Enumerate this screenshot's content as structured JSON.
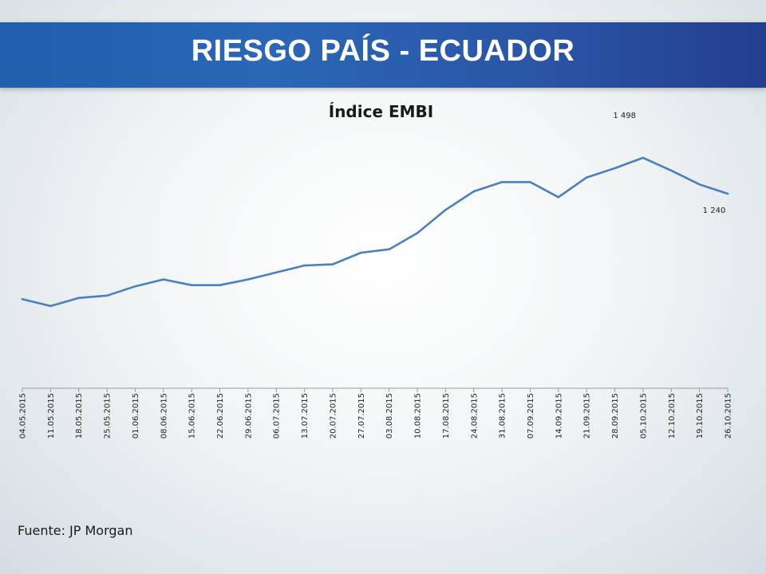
{
  "header": {
    "title": "RIESGO PAÍS - ECUADOR"
  },
  "footer": {
    "source": "Fuente: JP Morgan"
  },
  "colors": {
    "banner": "#2a5fae",
    "line": "#4a7fc0",
    "title_text": "#ffffff"
  },
  "chart_data": {
    "type": "line",
    "title": "Índice EMBI",
    "xlabel": "",
    "ylabel": "",
    "grid": false,
    "legend": "none",
    "y_axis_visible": false,
    "ylim": [
      400,
      1560
    ],
    "x_tick_labels": [
      "04.05.2015",
      "11.05.2015",
      "18.05.2015",
      "25.05.2015",
      "01.06.2015",
      "08.06.2015",
      "15.06.2015",
      "22.06.2015",
      "29.06.2015",
      "06.07.2015",
      "13.07.2015",
      "20.07.2015",
      "27.07.2015",
      "03.08.2015",
      "10.08.2015",
      "17.08.2015",
      "24.08.2015",
      "31.08.2015",
      "07.09.2015",
      "14.09.2015",
      "21.09.2015",
      "28.09.2015",
      "05.10.2015",
      "12.10.2015",
      "19.10.2015",
      "26.10.2015"
    ],
    "series": [
      {
        "x": [
          "04.05.2015",
          "11.05.2015",
          "18.05.2015",
          "25.05.2015",
          "01.06.2015",
          "08.06.2015",
          "15.06.2015",
          "22.06.2015",
          "29.06.2015",
          "06.07.2015",
          "13.07.2015",
          "20.07.2015",
          "27.07.2015",
          "03.08.2015",
          "10.08.2015",
          "17.08.2015",
          "24.08.2015",
          "31.08.2015",
          "07.09.2015",
          "14.09.2015",
          "21.09.2015",
          "28.09.2015",
          "05.10.2015",
          "12.10.2015",
          "19.10.2015",
          "26.10.2015"
        ],
        "values": [
          785,
          755,
          790,
          800,
          840,
          870,
          845,
          845,
          870,
          900,
          930,
          935,
          985,
          1000,
          1070,
          1170,
          1250,
          1290,
          1290,
          1225,
          1310,
          1350,
          1395,
          1340,
          1280,
          1240
        ]
      }
    ],
    "annotations": [
      {
        "x": "01.10.2015",
        "value": 1498,
        "text": "1 498"
      },
      {
        "x": "26.10.2015",
        "value": 1240,
        "text": "1 240"
      }
    ]
  }
}
